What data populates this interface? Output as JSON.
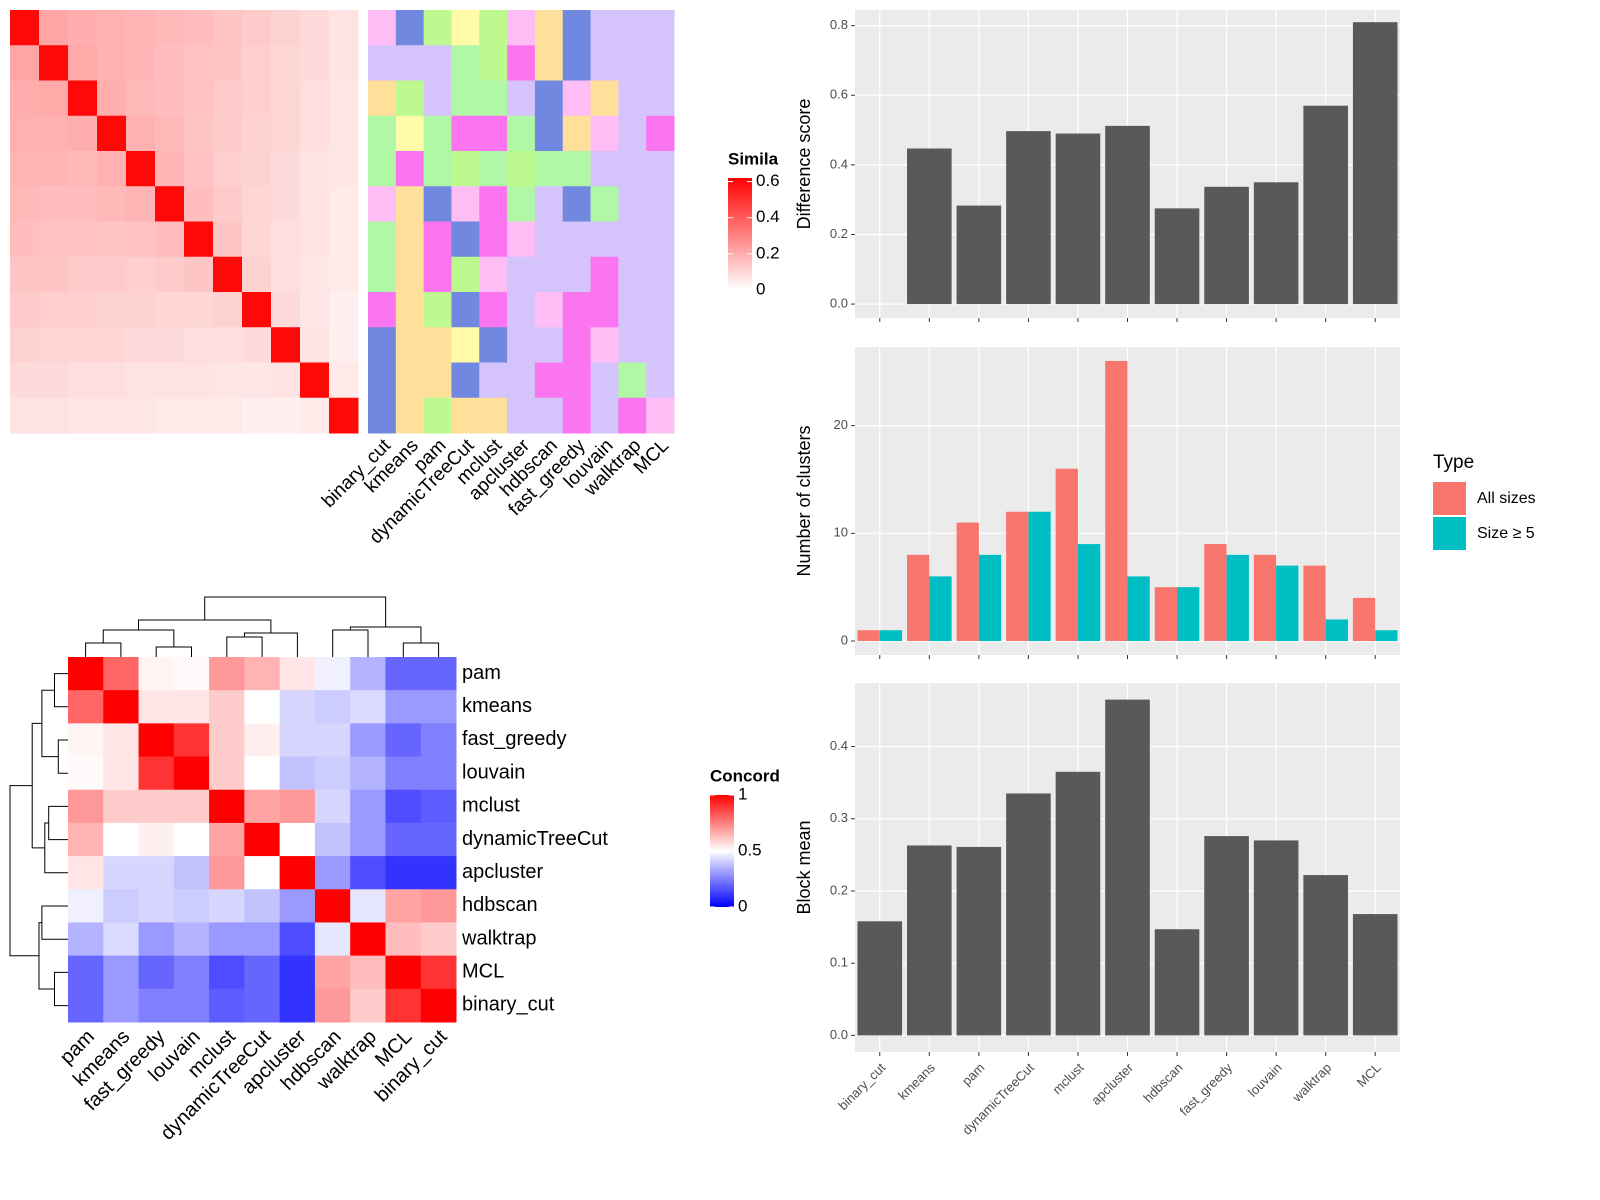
{
  "chart_data": [
    {
      "type": "heatmap",
      "legend_title": "Simila",
      "lim": [
        0,
        0.62
      ],
      "ticks": [
        0,
        0.2,
        0.4,
        0.6
      ],
      "colors": [
        "#ffffff",
        "#ff0000"
      ],
      "matrix": [
        [
          0.6,
          0.22,
          0.2,
          0.19,
          0.18,
          0.17,
          0.16,
          0.14,
          0.13,
          0.11,
          0.09,
          0.07
        ],
        [
          0.22,
          0.6,
          0.21,
          0.19,
          0.18,
          0.16,
          0.15,
          0.14,
          0.12,
          0.1,
          0.09,
          0.07
        ],
        [
          0.2,
          0.21,
          0.6,
          0.2,
          0.17,
          0.16,
          0.15,
          0.13,
          0.12,
          0.1,
          0.08,
          0.06
        ],
        [
          0.19,
          0.19,
          0.2,
          0.6,
          0.19,
          0.17,
          0.14,
          0.13,
          0.11,
          0.1,
          0.08,
          0.06
        ],
        [
          0.18,
          0.18,
          0.17,
          0.19,
          0.6,
          0.18,
          0.15,
          0.12,
          0.11,
          0.09,
          0.07,
          0.06
        ],
        [
          0.17,
          0.16,
          0.16,
          0.17,
          0.18,
          0.6,
          0.16,
          0.13,
          0.1,
          0.09,
          0.07,
          0.05
        ],
        [
          0.16,
          0.15,
          0.15,
          0.14,
          0.15,
          0.16,
          0.6,
          0.14,
          0.1,
          0.08,
          0.07,
          0.05
        ],
        [
          0.14,
          0.14,
          0.13,
          0.13,
          0.12,
          0.13,
          0.14,
          0.6,
          0.11,
          0.08,
          0.06,
          0.05
        ],
        [
          0.13,
          0.12,
          0.12,
          0.11,
          0.11,
          0.1,
          0.1,
          0.11,
          0.6,
          0.09,
          0.06,
          0.04
        ],
        [
          0.11,
          0.1,
          0.1,
          0.1,
          0.09,
          0.09,
          0.08,
          0.08,
          0.09,
          0.6,
          0.07,
          0.04
        ],
        [
          0.09,
          0.09,
          0.08,
          0.08,
          0.07,
          0.07,
          0.07,
          0.06,
          0.06,
          0.07,
          0.6,
          0.05
        ],
        [
          0.07,
          0.07,
          0.06,
          0.06,
          0.06,
          0.05,
          0.05,
          0.05,
          0.04,
          0.04,
          0.05,
          0.6
        ]
      ],
      "annotation_labels": [
        "binary_cut",
        "kmeans",
        "pam",
        "dynamicTreeCut",
        "mclust",
        "apcluster",
        "hdbscan",
        "fast_greedy",
        "louvain",
        "walktrap",
        "MCL"
      ],
      "palette": [
        "#d5c3fb",
        "#ffbdf6",
        "#7088e0",
        "#bdf98f",
        "#fffba8",
        "#fb74f0",
        "#ffe09a",
        "#b0f7a6"
      ],
      "annotation": [
        [
          1,
          2,
          3,
          4,
          3,
          1,
          6,
          2,
          0,
          0,
          0
        ],
        [
          0,
          0,
          0,
          7,
          3,
          5,
          6,
          2,
          0,
          0,
          0
        ],
        [
          6,
          3,
          0,
          7,
          7,
          0,
          2,
          1,
          6,
          0,
          0
        ],
        [
          7,
          4,
          7,
          5,
          5,
          7,
          2,
          6,
          1,
          0,
          5
        ],
        [
          7,
          5,
          7,
          3,
          7,
          3,
          7,
          7,
          0,
          0,
          0
        ],
        [
          1,
          6,
          2,
          1,
          5,
          7,
          0,
          2,
          7,
          0,
          0
        ],
        [
          7,
          6,
          5,
          2,
          5,
          1,
          0,
          0,
          0,
          0,
          0
        ],
        [
          7,
          6,
          5,
          3,
          1,
          0,
          0,
          0,
          5,
          0,
          0
        ],
        [
          5,
          6,
          3,
          2,
          5,
          0,
          1,
          5,
          5,
          0,
          0
        ],
        [
          2,
          6,
          6,
          4,
          2,
          0,
          0,
          5,
          1,
          0,
          0
        ],
        [
          2,
          6,
          6,
          2,
          0,
          0,
          5,
          5,
          0,
          7,
          0
        ],
        [
          2,
          6,
          3,
          6,
          6,
          0,
          0,
          5,
          0,
          5,
          1
        ]
      ]
    },
    {
      "type": "heatmap",
      "legend_title": "Concord",
      "lim": [
        0,
        1
      ],
      "ticks": [
        0,
        0.5,
        1
      ],
      "colors": [
        "#0000ff",
        "#ffffff",
        "#ff0000"
      ],
      "rows": [
        "pam",
        "kmeans",
        "fast_greedy",
        "louvain",
        "mclust",
        "dynamicTreeCut",
        "apcluster",
        "hdbscan",
        "walktrap",
        "MCL",
        "binary_cut"
      ],
      "columns": [
        "pam",
        "kmeans",
        "fast_greedy",
        "louvain",
        "mclust",
        "dynamicTreeCut",
        "apcluster",
        "hdbscan",
        "walktrap",
        "MCL",
        "binary_cut"
      ],
      "matrix": [
        [
          1,
          0.8,
          0.52,
          0.51,
          0.7,
          0.65,
          0.55,
          0.47,
          0.35,
          0.2,
          0.2
        ],
        [
          0.8,
          1,
          0.55,
          0.55,
          0.6,
          0.5,
          0.42,
          0.4,
          0.43,
          0.3,
          0.3
        ],
        [
          0.52,
          0.55,
          1,
          0.9,
          0.6,
          0.53,
          0.42,
          0.42,
          0.3,
          0.2,
          0.25
        ],
        [
          0.51,
          0.55,
          0.9,
          1,
          0.6,
          0.5,
          0.38,
          0.4,
          0.35,
          0.25,
          0.25
        ],
        [
          0.7,
          0.6,
          0.6,
          0.6,
          1,
          0.68,
          0.7,
          0.42,
          0.3,
          0.15,
          0.18
        ],
        [
          0.65,
          0.5,
          0.53,
          0.5,
          0.68,
          1,
          0.5,
          0.38,
          0.3,
          0.2,
          0.2
        ],
        [
          0.55,
          0.42,
          0.42,
          0.38,
          0.7,
          0.5,
          1,
          0.3,
          0.15,
          0.1,
          0.1
        ],
        [
          0.47,
          0.4,
          0.42,
          0.4,
          0.42,
          0.38,
          0.3,
          1,
          0.45,
          0.68,
          0.7
        ],
        [
          0.35,
          0.43,
          0.3,
          0.35,
          0.3,
          0.3,
          0.15,
          0.45,
          1,
          0.63,
          0.6
        ],
        [
          0.2,
          0.3,
          0.2,
          0.25,
          0.15,
          0.2,
          0.1,
          0.68,
          0.63,
          1,
          0.9
        ],
        [
          0.2,
          0.3,
          0.25,
          0.25,
          0.18,
          0.2,
          0.1,
          0.7,
          0.6,
          0.9,
          1
        ]
      ]
    },
    {
      "type": "bar",
      "ylabel": "Difference score",
      "color": "#595959",
      "grid": true,
      "values": [
        0,
        0.447,
        0.283,
        0.497,
        0.49,
        0.512,
        0.275,
        0.337,
        0.35,
        0.57,
        0.81
      ],
      "ylim": [
        -0.04,
        0.845
      ],
      "yticks": [
        {
          "value": 0,
          "label": "0.0"
        },
        0.2,
        0.4,
        0.6,
        0.8
      ]
    },
    {
      "type": "bar",
      "ylabel": "Number of clusters",
      "grid": true,
      "legend_title": "Type",
      "series": [
        {
          "name": "All sizes",
          "color": "#f8766d",
          "values": [
            1,
            8,
            11,
            12,
            16,
            26,
            5,
            9,
            8,
            7,
            4
          ]
        },
        {
          "name": "Size ≥ 5",
          "color": "#00bfc4",
          "values": [
            1,
            6,
            8,
            12,
            9,
            6,
            5,
            8,
            7,
            2,
            1
          ]
        }
      ],
      "ylim": [
        -1.3,
        27.3
      ],
      "yticks": [
        0,
        10,
        20
      ]
    },
    {
      "type": "bar",
      "ylabel": "Block mean",
      "color": "#595959",
      "grid": true,
      "categories": [
        "binary_cut",
        "kmeans",
        "pam",
        "dynamicTreeCut",
        "mclust",
        "apcluster",
        "hdbscan",
        "fast_greedy",
        "louvain",
        "walktrap",
        "MCL"
      ],
      "values": [
        0.158,
        0.263,
        0.261,
        0.335,
        0.365,
        0.465,
        0.147,
        0.276,
        0.27,
        0.222,
        0.168
      ],
      "ylim": [
        -0.023,
        0.488
      ],
      "yticks": [
        {
          "value": 0,
          "label": "0.0"
        },
        0.1,
        0.2,
        0.3,
        0.4
      ]
    }
  ]
}
